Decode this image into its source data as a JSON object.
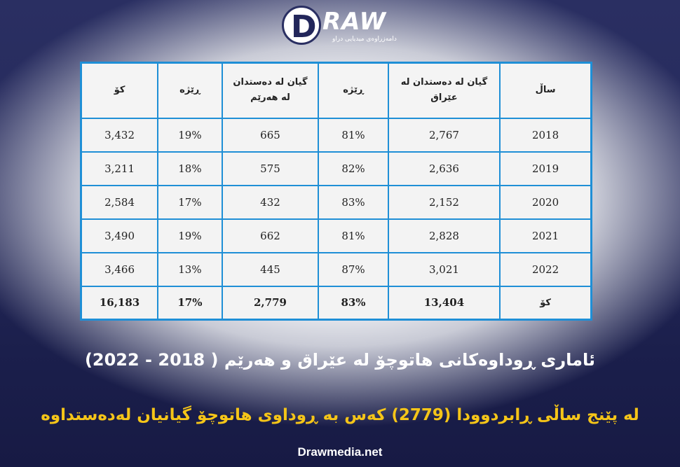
{
  "logo": {
    "mark": "D",
    "text": "RAW",
    "tagline": "دامەزراوەی میدیایی دراو"
  },
  "table": {
    "headers": [
      "کۆ",
      "ڕێژە",
      "گیان لە دەستدان لە هەرێم",
      "ڕێژە",
      "گیان لە دەستدان لە عێراق",
      "ساڵ"
    ],
    "rows": [
      [
        "3,432",
        "19%",
        "665",
        "81%",
        "2,767",
        "2018"
      ],
      [
        "3,211",
        "18%",
        "575",
        "82%",
        "2,636",
        "2019"
      ],
      [
        "2,584",
        "17%",
        "432",
        "83%",
        "2,152",
        "2020"
      ],
      [
        "3,490",
        "19%",
        "662",
        "81%",
        "2,828",
        "2021"
      ],
      [
        "3,466",
        "13%",
        "445",
        "87%",
        "3,021",
        "2022"
      ]
    ],
    "total": [
      "16,183",
      "17%",
      "2,779",
      "83%",
      "13,404",
      "کۆ"
    ]
  },
  "title": "ئاماری ڕوداوەکانی هاتوچۆ لە عێراق و هەرێم ( 2018 - 2022)",
  "subtitle": "لە پێنج ساڵی ڕابردوودا (2779) کەس بە ڕوداوی هاتوچۆ گیانیان لەدەستداوە",
  "website": "Drawmedia.net",
  "colors": {
    "background": "#1b1f4c",
    "table_border": "#1f8fd6",
    "subtitle": "#f5c518"
  }
}
